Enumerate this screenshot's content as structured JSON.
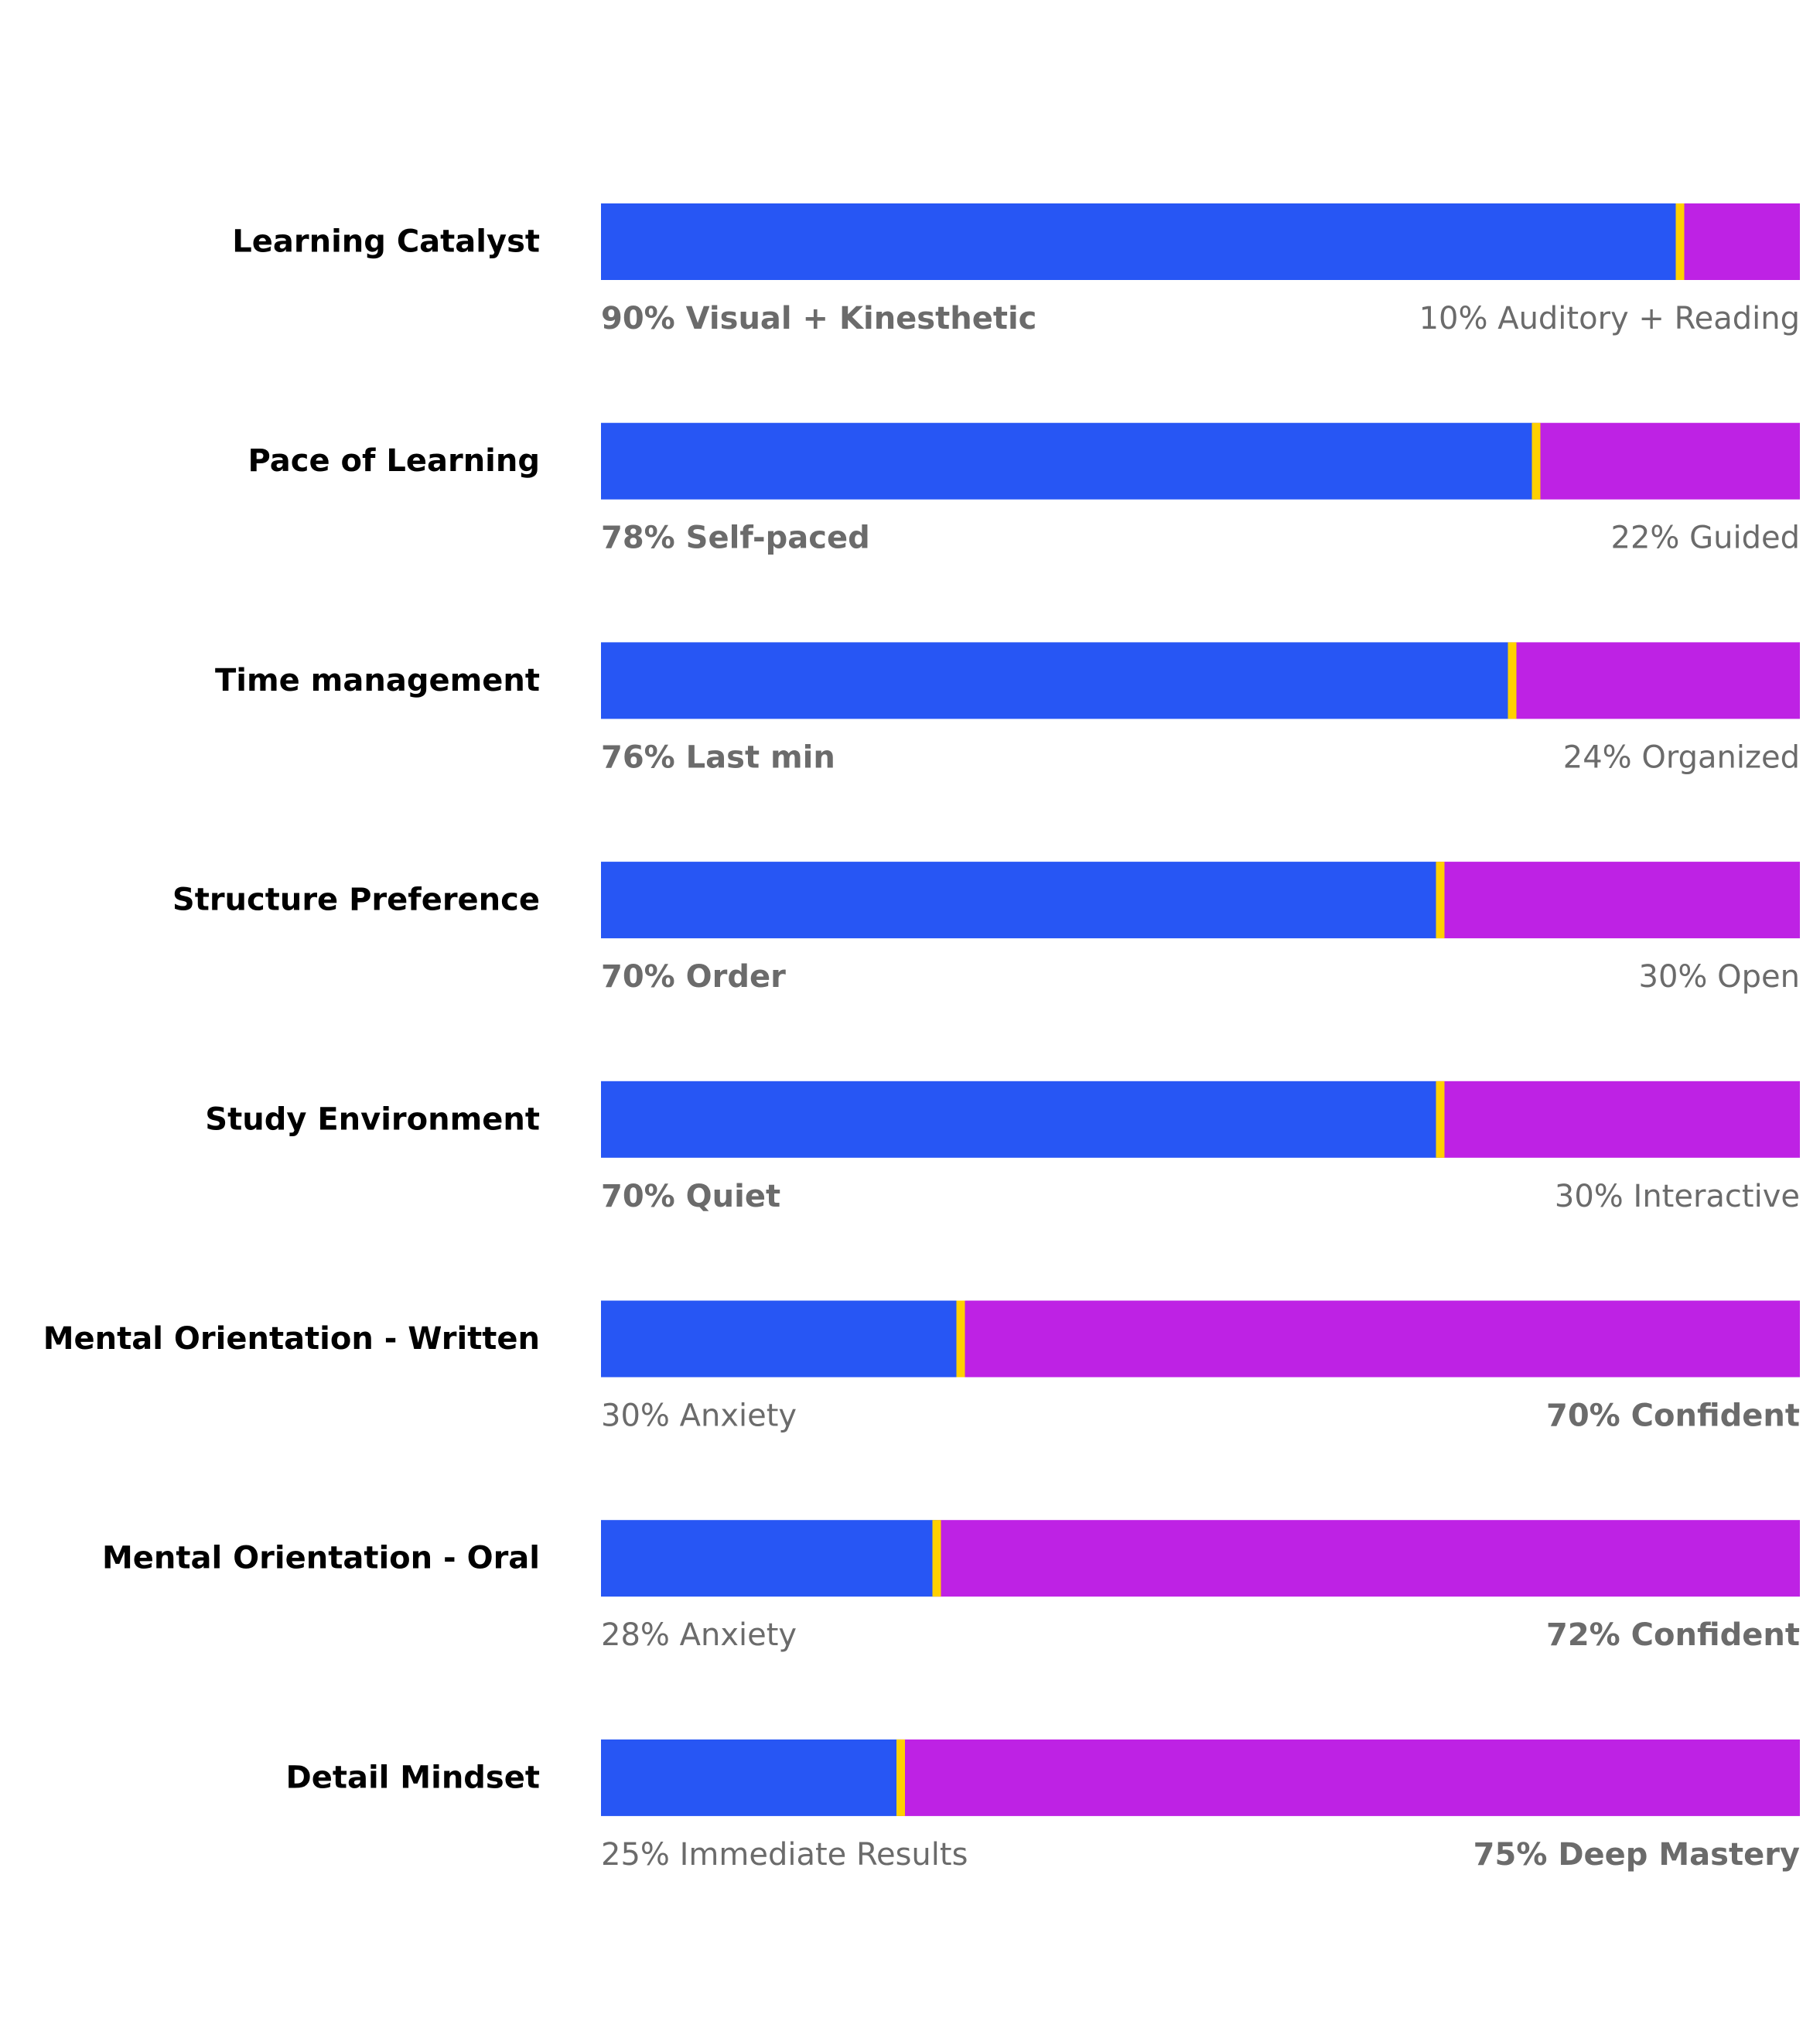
{
  "colors": {
    "left_segment": "#2756F4",
    "right_segment": "#BE22E4",
    "divider": "#FFD000",
    "row_label": "#000000",
    "sub_label": "#6B6B6B",
    "background": "#FFFFFF"
  },
  "chart_data": {
    "type": "bar",
    "orientation": "horizontal",
    "stacked": true,
    "normalized_percent": true,
    "xlim": [
      0,
      100
    ],
    "grid": false,
    "legend": "none",
    "rows": [
      {
        "label": "Learning Catalyst",
        "left": {
          "value": 90,
          "text": "90% Visual + Kinesthetic",
          "emphasized": true
        },
        "right": {
          "value": 10,
          "text": "10% Auditory + Reading",
          "emphasized": false
        }
      },
      {
        "label": "Pace of Learning",
        "left": {
          "value": 78,
          "text": "78% Self-paced",
          "emphasized": true
        },
        "right": {
          "value": 22,
          "text": "22% Guided",
          "emphasized": false
        }
      },
      {
        "label": "Time management",
        "left": {
          "value": 76,
          "text": "76% Last min",
          "emphasized": true
        },
        "right": {
          "value": 24,
          "text": "24% Organized",
          "emphasized": false
        }
      },
      {
        "label": "Structure Preference",
        "left": {
          "value": 70,
          "text": "70% Order",
          "emphasized": true
        },
        "right": {
          "value": 30,
          "text": "30% Open",
          "emphasized": false
        }
      },
      {
        "label": "Study Environment",
        "left": {
          "value": 70,
          "text": "70% Quiet",
          "emphasized": true
        },
        "right": {
          "value": 30,
          "text": "30% Interactive",
          "emphasized": false
        }
      },
      {
        "label": "Mental Orientation - Written",
        "left": {
          "value": 30,
          "text": "30% Anxiety",
          "emphasized": false
        },
        "right": {
          "value": 70,
          "text": "70% Confident",
          "emphasized": true
        }
      },
      {
        "label": "Mental Orientation - Oral",
        "left": {
          "value": 28,
          "text": "28% Anxiety",
          "emphasized": false
        },
        "right": {
          "value": 72,
          "text": "72% Confident",
          "emphasized": true
        }
      },
      {
        "label": "Detail Mindset",
        "left": {
          "value": 25,
          "text": "25% Immediate Results",
          "emphasized": false
        },
        "right": {
          "value": 75,
          "text": "75% Deep Mastery",
          "emphasized": true
        }
      }
    ]
  }
}
